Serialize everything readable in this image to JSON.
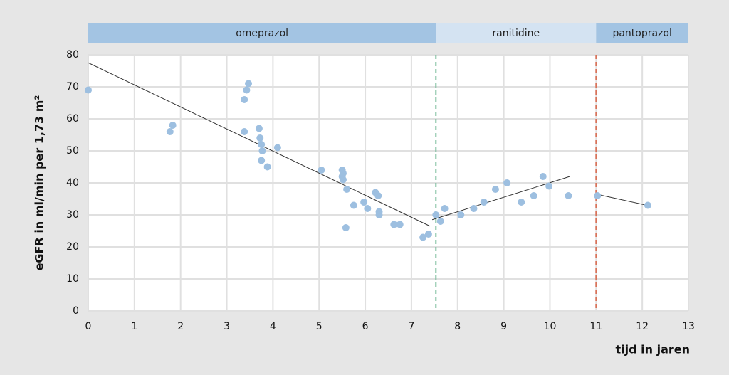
{
  "chart_data": {
    "type": "scatter",
    "ylabel": "eGFR in ml/min per 1,73 m²",
    "xlabel": "tijd in jaren",
    "xlim": [
      0,
      13
    ],
    "ylim": [
      0,
      80
    ],
    "xticks": [
      0,
      1,
      2,
      3,
      4,
      5,
      6,
      7,
      8,
      9,
      10,
      11,
      12,
      13
    ],
    "yticks": [
      0,
      10,
      20,
      30,
      40,
      50,
      60,
      70,
      80
    ],
    "grid": true,
    "color": "#9dbfe0",
    "x": [
      0,
      1.77,
      1.83,
      3.38,
      3.43,
      3.47,
      3.38,
      3.7,
      3.72,
      3.75,
      3.77,
      3.75,
      3.88,
      4.1,
      5.05,
      5.5,
      5.52,
      5.5,
      5.52,
      5.6,
      5.58,
      5.75,
      5.97,
      6.05,
      6.22,
      6.28,
      6.3,
      6.3,
      6.62,
      6.75,
      7.25,
      7.37,
      7.53,
      7.63,
      7.72,
      8.07,
      8.35,
      8.57,
      8.82,
      9.07,
      9.38,
      9.65,
      9.85,
      9.98,
      10.4,
      11.03,
      12.12
    ],
    "y": [
      69,
      56,
      58,
      66,
      69,
      71,
      56,
      57,
      54,
      52,
      50,
      47,
      45,
      51,
      44,
      44,
      43,
      42,
      41,
      38,
      26,
      33,
      34,
      32,
      37,
      36,
      31,
      30,
      27,
      27,
      23,
      24,
      30,
      28,
      32,
      30,
      32,
      34,
      38,
      40,
      34,
      36,
      42,
      39,
      36,
      36,
      33
    ],
    "trend_lines": [
      {
        "x": [
          0,
          7.4
        ],
        "y": [
          77.5,
          26.5
        ]
      },
      {
        "x": [
          7.45,
          10.43
        ],
        "y": [
          28.5,
          42
        ]
      },
      {
        "x": [
          11,
          12.1
        ],
        "y": [
          36.5,
          33
        ]
      }
    ],
    "trend_color": "#333333",
    "periods": [
      {
        "label": "omeprazol",
        "start": 0,
        "end": 7.53,
        "color": "#a3c4e3"
      },
      {
        "label": "ranitidine",
        "start": 7.53,
        "end": 11,
        "color": "#d4e3f2",
        "divider_color": "#7fbf9f"
      },
      {
        "label": "pantoprazol",
        "start": 11,
        "end": 13,
        "color": "#a3c4e3",
        "divider_color": "#d9735a"
      }
    ]
  }
}
